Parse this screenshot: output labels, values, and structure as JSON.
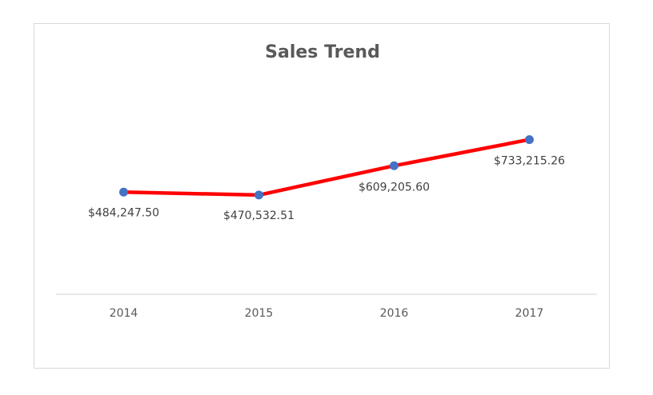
{
  "chart_data": {
    "type": "line",
    "title": "Sales Trend",
    "categories": [
      "2014",
      "2015",
      "2016",
      "2017"
    ],
    "values": [
      484247.5,
      470532.51,
      609205.6,
      733215.26
    ],
    "data_labels": [
      "$484,247.50",
      "$470,532.51",
      "$609,205.60",
      "$733,215.26"
    ],
    "xlabel": "",
    "ylabel": "",
    "ylim": [
      0,
      1100000
    ],
    "grid": false,
    "legend": "none",
    "line_color": "#ff0000",
    "marker_color": "#4472c4"
  }
}
